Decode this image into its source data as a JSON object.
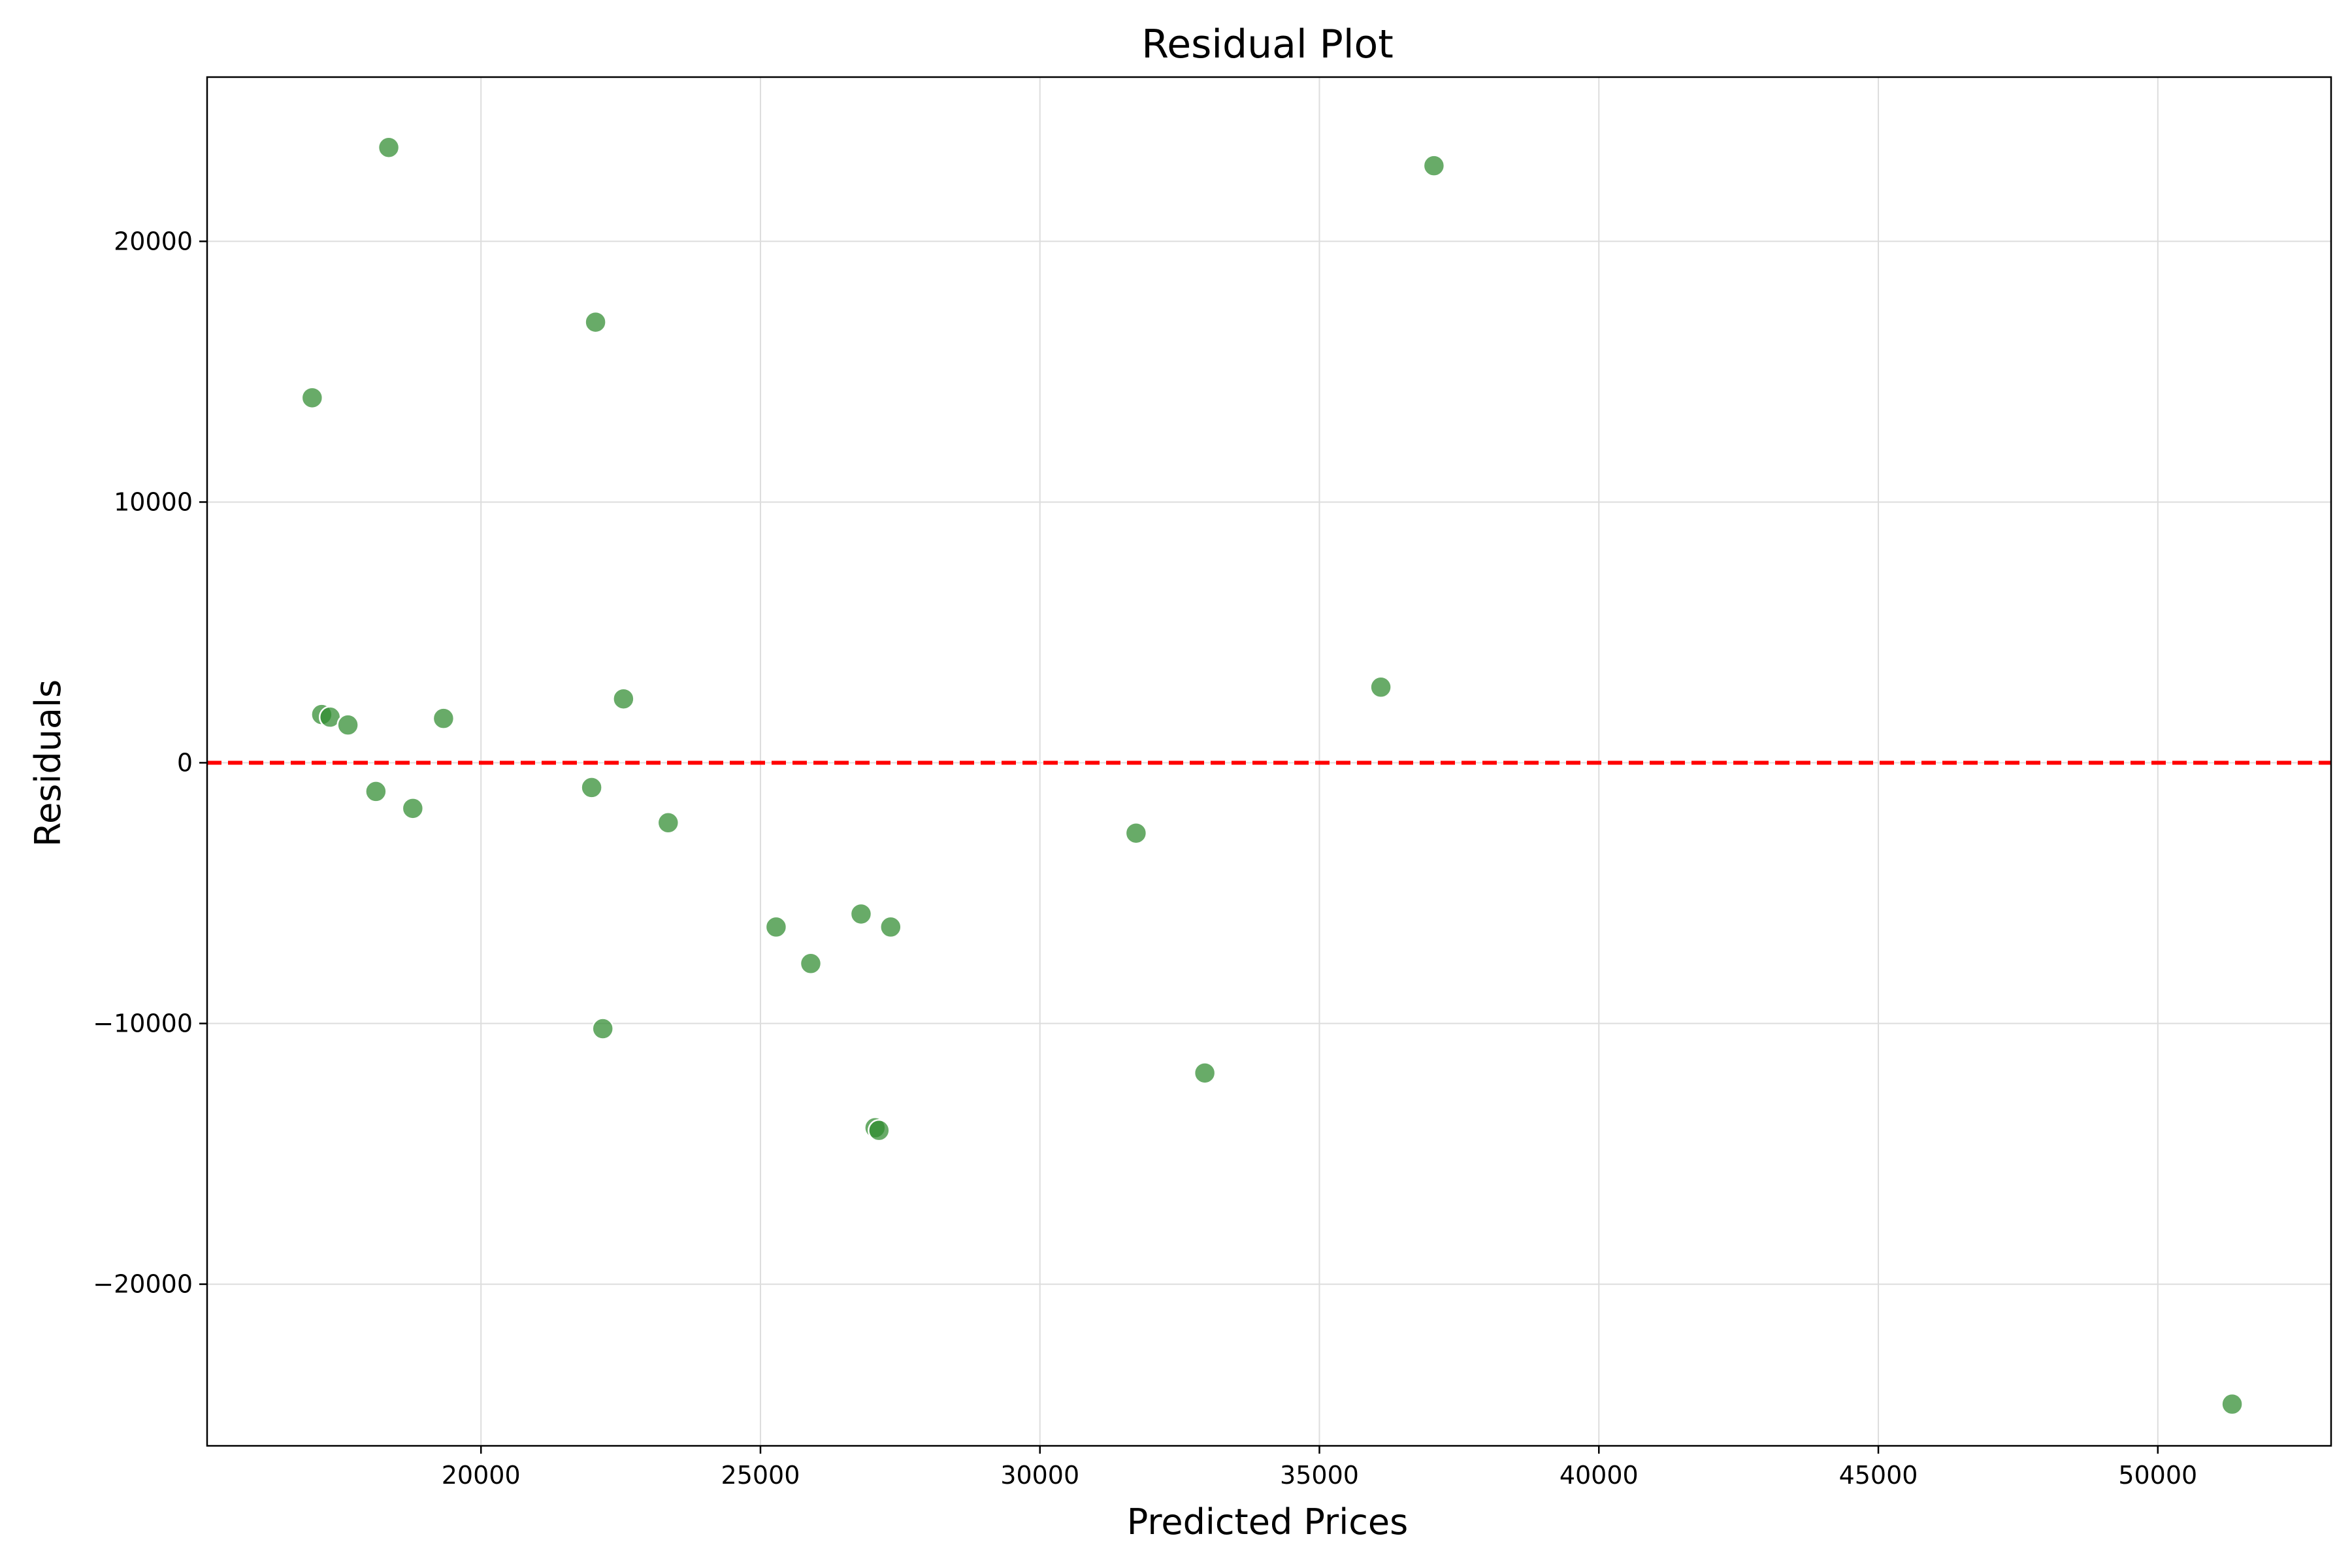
{
  "chart_data": {
    "type": "scatter",
    "title": "Residual Plot",
    "xlabel": "Predicted Prices",
    "ylabel": "Residuals",
    "xlim": [
      15100,
      53100
    ],
    "ylim": [
      -26200,
      26300
    ],
    "xticks": [
      20000,
      25000,
      30000,
      35000,
      40000,
      45000,
      50000
    ],
    "yticks": [
      -20000,
      -10000,
      0,
      10000,
      20000
    ],
    "xtick_labels": [
      "20000",
      "25000",
      "30000",
      "35000",
      "40000",
      "45000",
      "50000"
    ],
    "ytick_labels": [
      "−20000",
      "−10000",
      "0",
      "10000",
      "20000"
    ],
    "grid": true,
    "reference_line": {
      "y": 0,
      "style": "dashed",
      "color": "#ff0000"
    },
    "point_color": "#2e8b2e",
    "series": [
      {
        "x": [
          18350,
          37050,
          22050,
          16980,
          36100,
          22550,
          17150,
          17300,
          19330,
          17620,
          18120,
          21980,
          18780,
          23350,
          31720,
          26800,
          25280,
          27330,
          25900,
          22180,
          32950,
          27050,
          27120,
          51330
        ],
        "y": [
          23600,
          22900,
          16900,
          14000,
          2900,
          2450,
          1850,
          1750,
          1700,
          1450,
          -1100,
          -950,
          -1750,
          -2300,
          -2700,
          -5800,
          -6300,
          -6300,
          -7700,
          -10200,
          -11900,
          -14000,
          -14100,
          -24600
        ]
      }
    ]
  }
}
